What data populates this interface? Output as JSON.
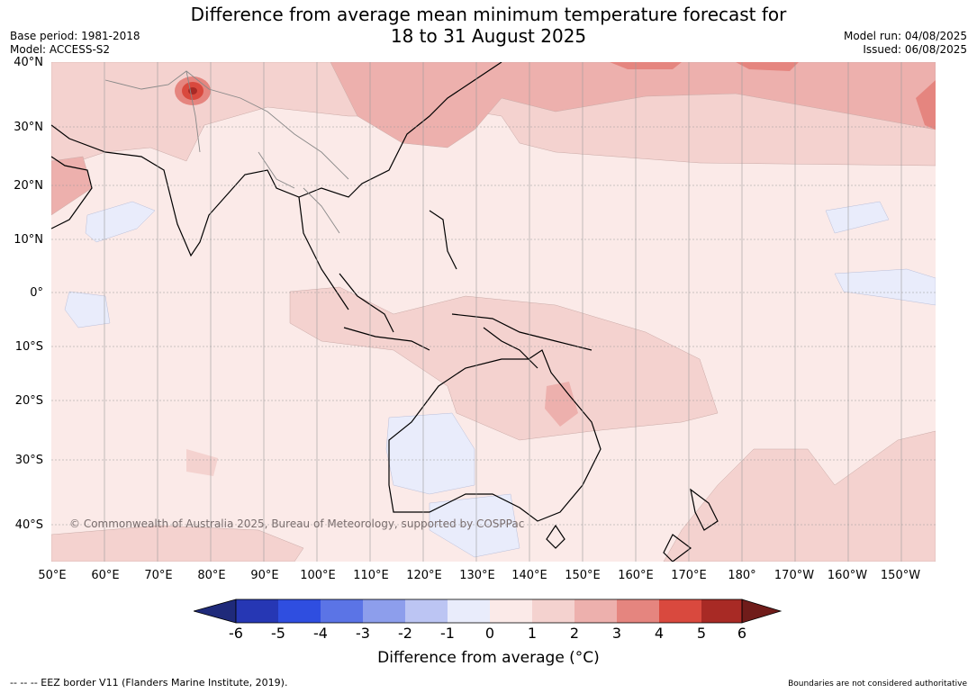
{
  "title_line1": "Difference from average mean minimum temperature forecast for",
  "title_line2": "18 to 31 August 2025",
  "base_period": "Base period: 1981-2018",
  "model": "Model: ACCESS-S2",
  "model_run": "Model run: 04/08/2025",
  "issued": "Issued: 06/08/2025",
  "lat_labels": [
    "40°N",
    "30°N",
    "20°N",
    "10°N",
    "0°",
    "10°S",
    "20°S",
    "30°S",
    "40°S"
  ],
  "lon_labels": [
    "50°E",
    "60°E",
    "70°E",
    "80°E",
    "90°E",
    "100°E",
    "110°E",
    "120°E",
    "130°E",
    "140°E",
    "150°E",
    "160°E",
    "170°E",
    "180°",
    "170°W",
    "160°W",
    "150°W"
  ],
  "colorbar": {
    "ticks": [
      "-6",
      "-5",
      "-4",
      "-3",
      "-2",
      "-1",
      "0",
      "1",
      "2",
      "3",
      "4",
      "5",
      "6"
    ],
    "colors": [
      "#1f2a7a",
      "#2637b4",
      "#2f4ee0",
      "#5b74e6",
      "#8d9eec",
      "#bcc5f3",
      "#e9ecfb",
      "#fbeae8",
      "#f4d2cf",
      "#edb0ad",
      "#e5857f",
      "#d9493e",
      "#a82a25",
      "#701c1a"
    ],
    "label": "Difference from average (°C)"
  },
  "watermark": "© Commonwealth of Australia 2025, Bureau of Meteorology, supported by COSPPac",
  "footer_left": "--  --  -- EEZ border V11 (Flanders Marine Institute, 2019).",
  "footer_right": "Boundaries are not considered authoritative"
}
